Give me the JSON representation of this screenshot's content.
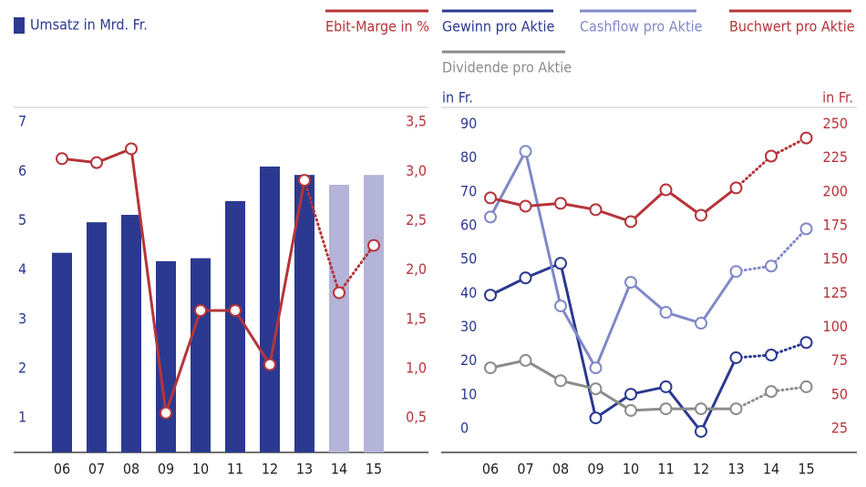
{
  "chart_data": [
    {
      "type": "bar",
      "categories": [
        "06",
        "07",
        "08",
        "09",
        "10",
        "11",
        "12",
        "13",
        "14",
        "15"
      ],
      "dotted_from": "13",
      "ylim": [
        0.3,
        7.3
      ],
      "yticks": [
        1,
        2,
        3,
        4,
        5,
        6,
        7
      ],
      "y2lim": [
        0.15,
        3.65
      ],
      "y2ticks": [
        {
          "value": 0.5,
          "label": "0,5"
        },
        {
          "value": 1,
          "label": "1,0"
        },
        {
          "value": 1.5,
          "label": "1,5"
        },
        {
          "value": 2,
          "label": "2,0"
        },
        {
          "value": 2.5,
          "label": "2,5"
        },
        {
          "value": 3,
          "label": "3,0"
        },
        {
          "value": 3.5,
          "label": "3,5"
        }
      ],
      "series": [
        {
          "name": "Umsatz in Mrd. Fr.",
          "type": "bar",
          "color": "#2b3990",
          "colors": [
            "#2b3990",
            "#2b3990",
            "#2b3990",
            "#2b3990",
            "#2b3990",
            "#2b3990",
            "#2b3990",
            "#2b3990",
            "#b4b4d8",
            "#b4b4d8"
          ],
          "values": [
            4.35,
            4.97,
            5.12,
            4.18,
            4.24,
            5.4,
            6.1,
            5.93,
            5.73,
            5.93
          ]
        },
        {
          "name": "Ebit-Marge in %",
          "type": "line",
          "axis": "y2",
          "color": "#b5343a",
          "values": [
            3.13,
            3.09,
            3.23,
            0.55,
            1.59,
            1.59,
            1.04,
            2.91,
            1.77,
            2.25
          ]
        }
      ]
    },
    {
      "type": "line",
      "categories": [
        "06",
        "07",
        "08",
        "09",
        "10",
        "11",
        "12",
        "13",
        "14",
        "15"
      ],
      "dotted_from": "13",
      "ylabel": "in Fr.",
      "y2label": "in Fr.",
      "ylim": [
        -7,
        95
      ],
      "yticks": [
        0,
        10,
        20,
        30,
        40,
        50,
        60,
        70,
        80,
        90
      ],
      "y2lim": [
        7.5,
        262.5
      ],
      "y2ticks": [
        25,
        50,
        75,
        100,
        125,
        150,
        175,
        200,
        225,
        250
      ],
      "series": [
        {
          "name": "Gewinn pro Aktie",
          "color": "#2b3990",
          "values": [
            39.5,
            44.6,
            48.9,
            3.2,
            10.2,
            12.4,
            -0.8,
            21,
            21.8,
            25.5
          ]
        },
        {
          "name": "Cashflow pro Aktie",
          "color": "#8088c8",
          "values": [
            62.6,
            82,
            36.3,
            18,
            43.3,
            34.4,
            31.2,
            46.5,
            48.1,
            59.1
          ]
        },
        {
          "name": "Buchwert pro Aktie",
          "color": "#b5343a",
          "axis": "y2",
          "values": [
            195.6,
            189.5,
            191.6,
            186.9,
            178.1,
            201.6,
            182.8,
            203,
            226.5,
            239.9
          ]
        },
        {
          "name": "Dividende pro Aktie",
          "color": "#8c8c8c",
          "values": [
            18,
            20.2,
            14.2,
            11.8,
            5.4,
            5.9,
            5.9,
            5.9,
            11,
            12.4
          ]
        }
      ]
    }
  ]
}
